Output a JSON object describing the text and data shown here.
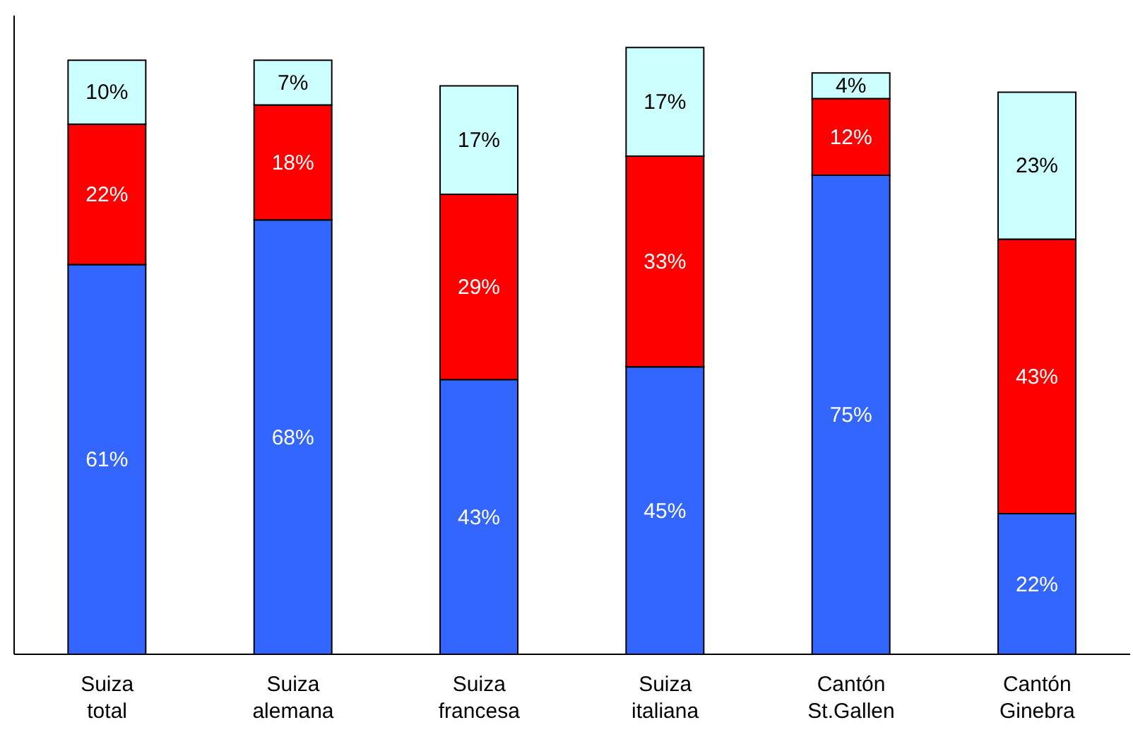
{
  "chart_data": {
    "type": "bar",
    "stacked": true,
    "categories": [
      "Suiza total",
      "Suiza alemana",
      "Suiza francesa",
      "Suiza italiana",
      "Cantón St.Gallen",
      "Cantón Ginebra"
    ],
    "ylim": [
      0,
      100
    ],
    "tick_labels": "x",
    "grid": false,
    "legend": false,
    "series": [
      {
        "color": "#3366ff",
        "values": [
          61,
          68,
          43,
          45,
          75,
          22
        ],
        "value_labels": [
          "61%",
          "68%",
          "43%",
          "45%",
          "75%",
          "22%"
        ]
      },
      {
        "color": "#ff0000",
        "values": [
          22,
          18,
          29,
          33,
          12,
          43
        ],
        "value_labels": [
          "22%",
          "18%",
          "29%",
          "33%",
          "12%",
          "43%"
        ]
      },
      {
        "color": "#ccffff",
        "values": [
          10,
          7,
          17,
          17,
          4,
          23
        ],
        "value_labels": [
          "10%",
          "7%",
          "17%",
          "17%",
          "4%",
          "23%"
        ]
      }
    ]
  }
}
